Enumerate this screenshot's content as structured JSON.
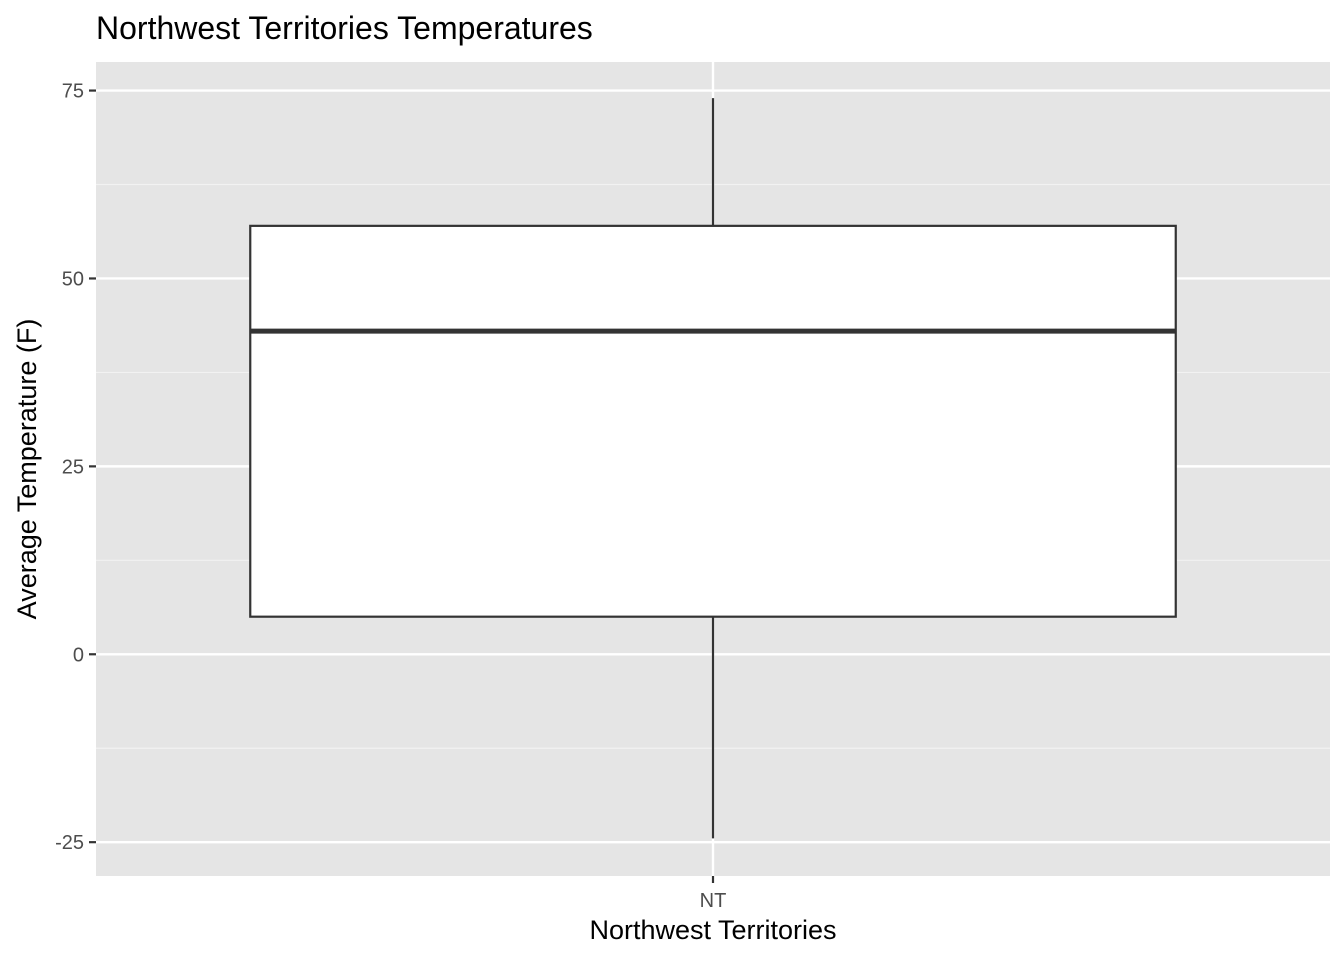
{
  "chart_data": {
    "type": "box",
    "title": "Northwest Territories Temperatures",
    "xlabel": "Northwest Territories",
    "ylabel": "Average Temperature (F)",
    "categories": [
      "NT"
    ],
    "boxes": [
      {
        "category": "NT",
        "whisker_low": -24.5,
        "q1": 5,
        "median": 43,
        "q3": 57,
        "whisker_high": 74
      }
    ],
    "y_ticks": [
      -25,
      0,
      25,
      50,
      75
    ],
    "y_tick_labels": [
      "-25",
      "0",
      "25",
      "50",
      "75"
    ],
    "ylim": [
      -29.5,
      78.8
    ],
    "grid": true,
    "legend": "none",
    "colors": {
      "panel_background": "#e5e5e5",
      "grid_major": "#ffffff",
      "grid_minor": "#f2f2f2",
      "box_fill": "#ffffff",
      "box_outline": "#333333",
      "tick_mark": "#333333",
      "tick_label": "#4d4d4d"
    }
  }
}
